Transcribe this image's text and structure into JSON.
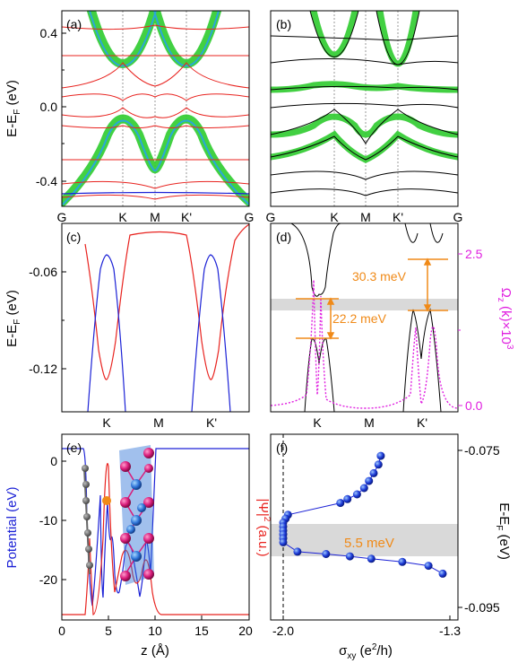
{
  "figure": {
    "panels": [
      {
        "id": "a",
        "tag": "(a)"
      },
      {
        "id": "b",
        "tag": "(b)"
      },
      {
        "id": "c",
        "tag": "(c)"
      },
      {
        "id": "d",
        "tag": "(d)"
      },
      {
        "id": "e",
        "tag": "(e)"
      },
      {
        "id": "f",
        "tag": "(f)"
      }
    ],
    "row1": {
      "ylabel": "E-E",
      "ylabel_sub": "F",
      "ylabel_tail": " (eV)",
      "yticks": [
        "0.4",
        "0.0",
        "-0.4"
      ],
      "kpoints": [
        "G",
        "K",
        "M",
        "K'",
        "G"
      ]
    },
    "row2": {
      "ylabel": "E-E",
      "ylabel_sub": "F",
      "ylabel_tail": " (eV)",
      "yticks": [
        "-0.06",
        "-0.12"
      ],
      "kpoints": [
        "K",
        "M",
        "K'"
      ],
      "right_yticks": [
        "2.5",
        "0.0"
      ],
      "right_ylabel": "Ω",
      "right_ylabel_sub": "z",
      "right_ylabel_tail": " (k)×10",
      "right_ylabel_sup": "3",
      "gap_large": "30.3 meV",
      "gap_small": "22.2 meV"
    },
    "row3": {
      "e_ylabel_left": "Potential (eV)",
      "e_ylabel_right_a": "|Ψ|",
      "e_ylabel_right_sup": "2",
      "e_ylabel_right_b": " (a.u.)",
      "e_yticks": [
        "0",
        "-10",
        "-20"
      ],
      "e_xticks": [
        "0",
        "5",
        "10",
        "15",
        "20"
      ],
      "e_xlabel": "z (Å)",
      "f_xticks": [
        "-2.0",
        "-1.3"
      ],
      "f_xlabel_a": "σ",
      "f_xlabel_sub": "xy",
      "f_xlabel_b": " (e",
      "f_xlabel_sup": "2",
      "f_xlabel_c": "/h)",
      "f_yticks": [
        "-0.075",
        "-0.095"
      ],
      "f_ylabel": "E-E",
      "f_ylabel_sub": "F",
      "f_ylabel_tail": " (eV)",
      "f_gap": "5.5 meV"
    },
    "colors": {
      "red": "#e8231f",
      "blue": "#1c22d6",
      "green": "#2ecc2e",
      "cyan": "#2aa7d8",
      "magenta": "#e020e0",
      "orange": "#f08a18",
      "gray": "#d9d9d9",
      "ball_blue": "#2f74d8",
      "ball_pink": "#d81b7a"
    }
  },
  "chart_data": [
    {
      "type": "line",
      "panel": "(f)",
      "xlabel": "σxy (e2/h)",
      "ylabel": "E-EF (eV)",
      "xlim": [
        -2.0,
        -1.3
      ],
      "ylim": [
        -0.096,
        -0.074
      ],
      "x": [
        -1.59,
        -1.6,
        -1.62,
        -1.64,
        -1.66,
        -1.69,
        -1.73,
        -1.76,
        -1.98,
        -1.99,
        -2.0,
        -2.0,
        -2.0,
        -2.0,
        -2.0,
        -2.0,
        -1.94,
        -1.82,
        -1.72,
        -1.63,
        -1.5,
        -1.39,
        -1.33
      ],
      "y": [
        -0.0757,
        -0.0768,
        -0.0779,
        -0.0789,
        -0.0798,
        -0.0806,
        -0.0812,
        -0.0817,
        -0.0832,
        -0.0837,
        -0.0842,
        -0.0847,
        -0.0852,
        -0.0857,
        -0.0862,
        -0.0867,
        -0.0879,
        -0.0882,
        -0.0885,
        -0.0888,
        -0.0892,
        -0.0897,
        -0.0907
      ]
    }
  ]
}
